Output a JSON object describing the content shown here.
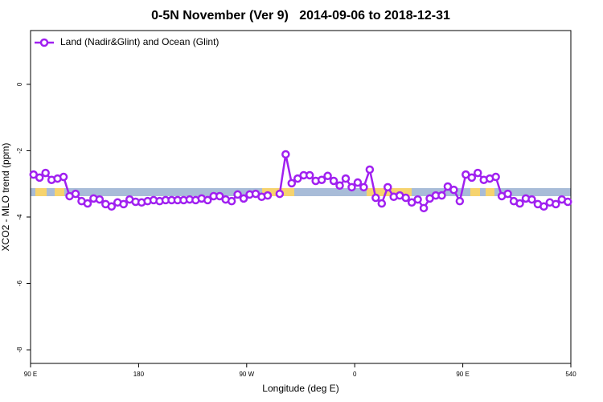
{
  "chart_data": {
    "type": "line",
    "title": "0-5N November (Ver 9)   2014-09-06 to 2018-12-31",
    "x_label": "Longitude (deg E)",
    "y_label": "XCO2 - MLO trend (ppm)",
    "xlim": [
      90,
      540
    ],
    "xticks": [
      {
        "value": 90,
        "label": "90 E"
      },
      180,
      {
        "value": 270,
        "label": "90 W"
      },
      {
        "value": 360,
        "label": "0"
      },
      {
        "value": 450,
        "label": "90 E"
      },
      540
    ],
    "ylim": [
      -8.41,
      1.62
    ],
    "yticks": [
      0,
      -2,
      -4,
      -6,
      -8
    ],
    "legend": "top-left",
    "x": [
      92.5,
      97.5,
      102.5,
      107.5,
      112.5,
      117.5,
      122.5,
      127.5,
      132.5,
      137.5,
      142.5,
      147.5,
      152.5,
      157.5,
      162.5,
      167.5,
      172.5,
      177.5,
      182.5,
      187.5,
      192.5,
      197.5,
      202.5,
      207.5,
      212.5,
      217.5,
      222.5,
      227.5,
      232.5,
      237.5,
      242.5,
      247.5,
      252.5,
      257.5,
      262.5,
      267.5,
      272.5,
      277.5,
      282.5,
      287.5,
      292.5,
      297.5,
      302.5,
      307.5,
      312.5,
      317.5,
      322.5,
      327.5,
      332.5,
      337.5,
      342.5,
      347.5,
      352.5,
      357.5,
      362.5,
      367.5,
      372.5,
      377.5,
      382.5,
      387.5,
      392.5,
      397.5,
      402.5,
      407.5,
      412.5,
      417.5,
      422.5,
      427.5,
      432.5,
      437.5,
      442.5,
      447.5,
      452.5,
      457.5,
      462.5,
      467.5,
      472.5,
      477.5,
      482.5,
      487.5,
      492.5,
      497.5,
      502.5,
      507.5,
      512.5,
      517.5,
      522.5,
      527.5,
      532.5,
      537.5
    ],
    "series": [
      {
        "name": "Land (Nadir&Glint) and Ocean (Glint)",
        "color": "#a020f0",
        "values": [
          -2.72,
          -2.81,
          -2.67,
          -2.88,
          -2.84,
          -2.79,
          -3.37,
          -3.3,
          -3.52,
          -3.59,
          -3.44,
          -3.47,
          -3.61,
          -3.68,
          -3.56,
          -3.61,
          -3.47,
          -3.54,
          -3.56,
          -3.52,
          -3.49,
          -3.52,
          -3.49,
          -3.49,
          -3.49,
          -3.49,
          -3.47,
          -3.49,
          -3.44,
          -3.49,
          -3.37,
          -3.37,
          -3.47,
          -3.52,
          -3.32,
          -3.44,
          -3.32,
          -3.3,
          -3.39,
          -3.35,
          null,
          -3.3,
          -2.11,
          -2.98,
          -2.84,
          -2.74,
          -2.74,
          -2.91,
          -2.88,
          -2.76,
          -2.91,
          -3.05,
          -2.84,
          -3.1,
          -2.96,
          -3.1,
          -2.57,
          -3.42,
          -3.59,
          -3.1,
          -3.39,
          -3.35,
          -3.42,
          -3.56,
          -3.47,
          -3.73,
          -3.44,
          -3.35,
          -3.35,
          -3.08,
          -3.18,
          -3.52,
          -2.72,
          -2.81,
          -2.67,
          -2.88,
          -2.84,
          -2.79,
          -3.37,
          -3.3,
          -3.52,
          -3.59,
          -3.44,
          -3.47,
          -3.61,
          -3.68,
          -3.56,
          -3.61,
          -3.47,
          -3.54
        ]
      }
    ]
  }
}
